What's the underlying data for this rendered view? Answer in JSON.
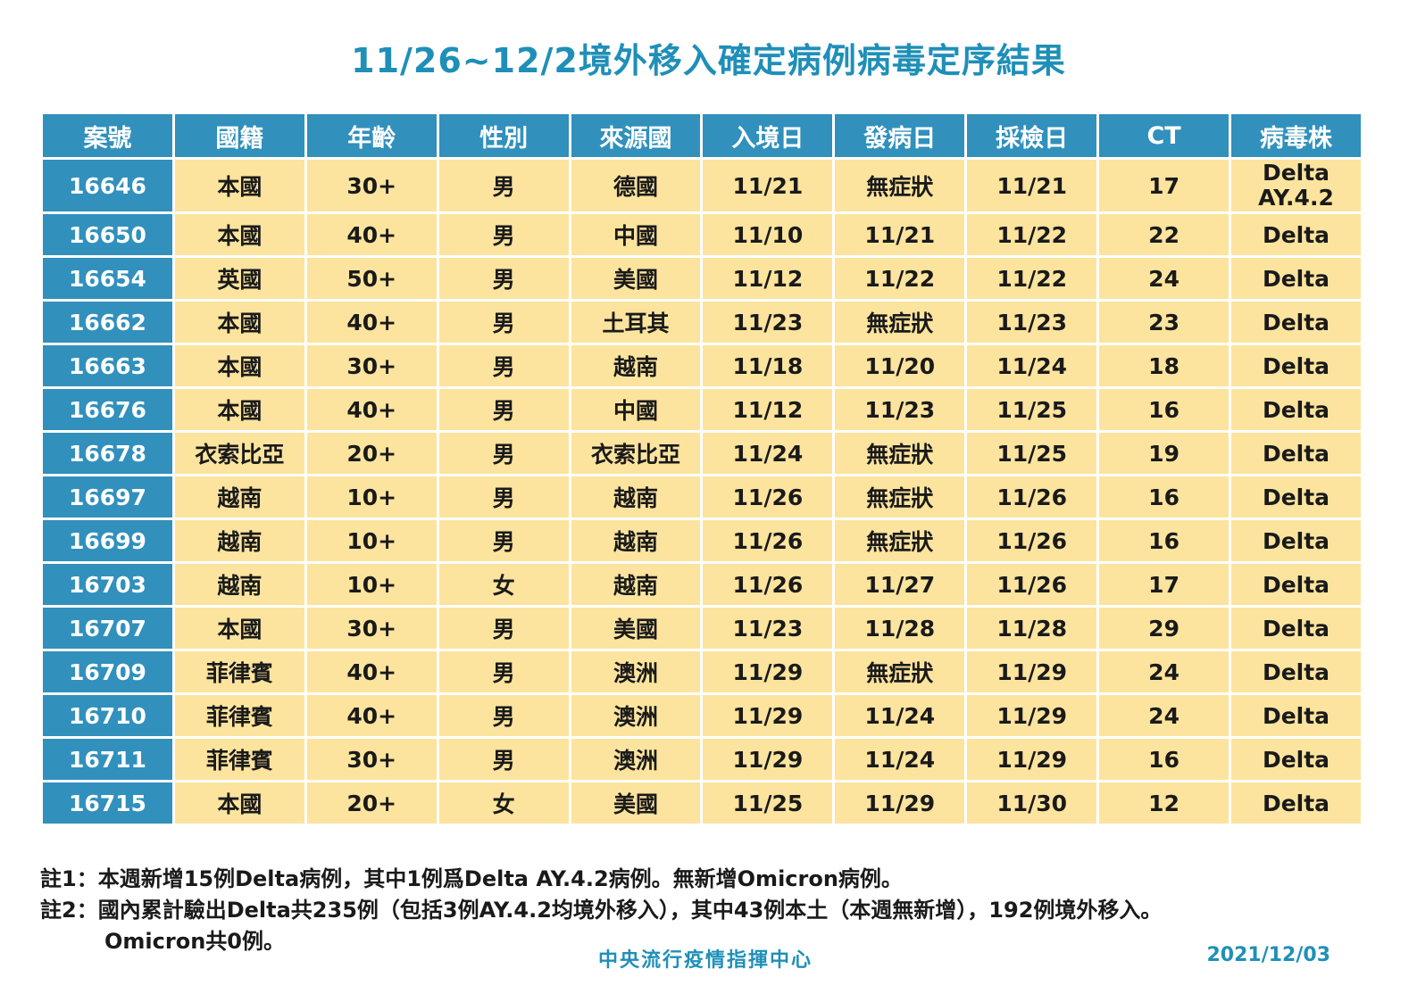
{
  "title": "11/26~12/2境外移入確定病例病毒定序結果",
  "table": {
    "headers": [
      "案號",
      "國籍",
      "年齡",
      "性別",
      "來源國",
      "入境日",
      "發病日",
      "採檢日",
      "CT",
      "病毒株"
    ],
    "rows": [
      [
        "16646",
        "本國",
        "30+",
        "男",
        "德國",
        "11/21",
        "無症狀",
        "11/21",
        "17",
        "Delta AY.4.2"
      ],
      [
        "16650",
        "本國",
        "40+",
        "男",
        "中國",
        "11/10",
        "11/21",
        "11/22",
        "22",
        "Delta"
      ],
      [
        "16654",
        "英國",
        "50+",
        "男",
        "美國",
        "11/12",
        "11/22",
        "11/22",
        "24",
        "Delta"
      ],
      [
        "16662",
        "本國",
        "40+",
        "男",
        "土耳其",
        "11/23",
        "無症狀",
        "11/23",
        "23",
        "Delta"
      ],
      [
        "16663",
        "本國",
        "30+",
        "男",
        "越南",
        "11/18",
        "11/20",
        "11/24",
        "18",
        "Delta"
      ],
      [
        "16676",
        "本國",
        "40+",
        "男",
        "中國",
        "11/12",
        "11/23",
        "11/25",
        "16",
        "Delta"
      ],
      [
        "16678",
        "衣索比亞",
        "20+",
        "男",
        "衣索比亞",
        "11/24",
        "無症狀",
        "11/25",
        "19",
        "Delta"
      ],
      [
        "16697",
        "越南",
        "10+",
        "男",
        "越南",
        "11/26",
        "無症狀",
        "11/26",
        "16",
        "Delta"
      ],
      [
        "16699",
        "越南",
        "10+",
        "男",
        "越南",
        "11/26",
        "無症狀",
        "11/26",
        "16",
        "Delta"
      ],
      [
        "16703",
        "越南",
        "10+",
        "女",
        "越南",
        "11/26",
        "11/27",
        "11/26",
        "17",
        "Delta"
      ],
      [
        "16707",
        "本國",
        "30+",
        "男",
        "美國",
        "11/23",
        "11/28",
        "11/28",
        "29",
        "Delta"
      ],
      [
        "16709",
        "菲律賓",
        "40+",
        "男",
        "澳洲",
        "11/29",
        "無症狀",
        "11/29",
        "24",
        "Delta"
      ],
      [
        "16710",
        "菲律賓",
        "40+",
        "男",
        "澳洲",
        "11/29",
        "11/24",
        "11/29",
        "24",
        "Delta"
      ],
      [
        "16711",
        "菲律賓",
        "30+",
        "男",
        "澳洲",
        "11/29",
        "11/24",
        "11/29",
        "16",
        "Delta"
      ],
      [
        "16715",
        "本國",
        "20+",
        "女",
        "美國",
        "11/25",
        "11/29",
        "11/30",
        "12",
        "Delta"
      ]
    ]
  },
  "notes": {
    "note1_label": "註1：",
    "note1_text": "本週新增15例Delta病例，其中1例爲Delta AY.4.2病例。無新增Omicron病例。",
    "note2_label": "註2：",
    "note2_text": "國內累計驗出Delta共235例（包括3例AY.4.2均境外移入），其中43例本土（本週無新增），192例境外移入。",
    "note2_cont": "Omicron共0例。"
  },
  "footer": {
    "org": "中央流行疫情指揮中心",
    "date": "2021/12/03"
  },
  "colors": {
    "header_blue": "#3190bc",
    "title_blue": "#1f8fb8",
    "cell_yellow": "#fce49e"
  }
}
